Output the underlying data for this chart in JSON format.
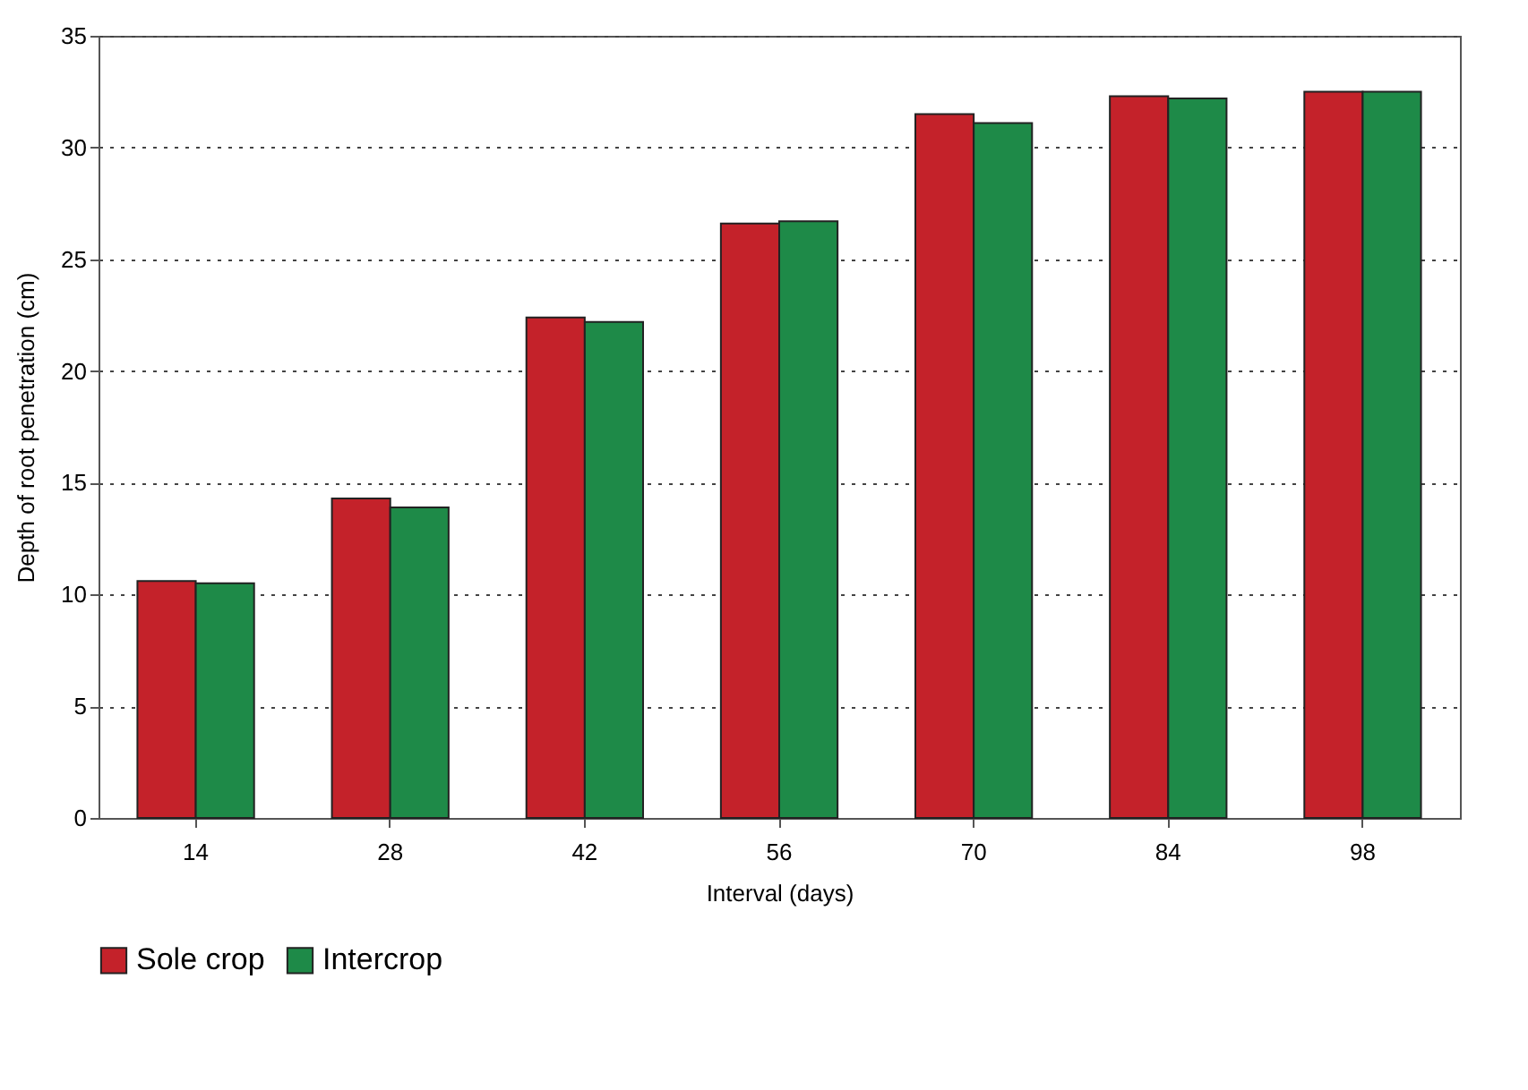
{
  "chart_data": {
    "type": "bar",
    "xlabel": "Interval (days)",
    "ylabel": "Depth of root penetration (cm)",
    "categories": [
      "14",
      "28",
      "42",
      "56",
      "70",
      "84",
      "98"
    ],
    "series": [
      {
        "name": "Sole crop",
        "color": "#c4222a",
        "values": [
          10.6,
          14.3,
          22.4,
          26.6,
          31.5,
          32.3,
          32.5
        ]
      },
      {
        "name": "Intercrop",
        "color": "#1e8a48",
        "values": [
          10.5,
          13.9,
          22.2,
          26.7,
          31.1,
          32.2,
          32.5
        ]
      }
    ],
    "ylim": [
      0,
      35
    ],
    "yticks": [
      0,
      5,
      10,
      15,
      20,
      25,
      30,
      35
    ],
    "grid": "y",
    "legend": "bottom"
  }
}
